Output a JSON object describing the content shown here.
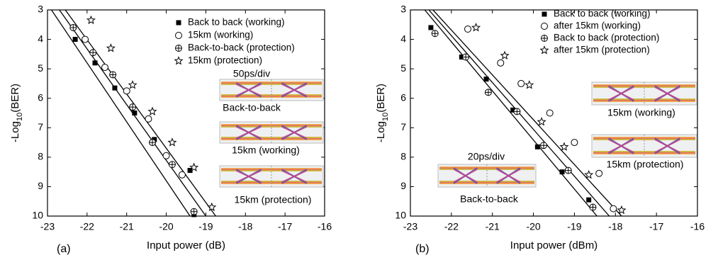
{
  "chart_data": [
    {
      "type": "scatter",
      "panel_label": "(a)",
      "xlabel": "Input power (dB)",
      "ylabel": [
        "-Log",
        "10",
        "(BER)"
      ],
      "xlim": [
        -23,
        -16
      ],
      "xticks": [
        -23,
        -22,
        -21,
        -20,
        -19,
        -18,
        -17,
        -16
      ],
      "ylim": [
        3,
        10
      ],
      "yticks": [
        3,
        4,
        5,
        6,
        7,
        8,
        9,
        10
      ],
      "y_inverted": true,
      "legend": "upper right",
      "series": [
        {
          "name": "Back to back (working)",
          "marker": "square",
          "color": "#000000",
          "x": [
            -22.3,
            -21.8,
            -21.3,
            -20.8,
            -20.3,
            -19.4,
            -19.3
          ],
          "values": [
            4.0,
            4.8,
            5.65,
            6.5,
            7.4,
            8.45,
            9.95
          ]
        },
        {
          "name": "15km (working)",
          "marker": "circle",
          "color": "#000000",
          "x": [
            -22.05,
            -21.55,
            -21.0,
            -20.45,
            -20.0,
            -19.6
          ],
          "values": [
            4.0,
            4.95,
            5.75,
            6.7,
            7.95,
            8.6
          ]
        },
        {
          "name": "Back-to-back (protection)",
          "marker": "circle-plus",
          "color": "#000000",
          "x": [
            -22.35,
            -21.85,
            -21.35,
            -20.85,
            -20.35,
            -19.85,
            -19.3
          ],
          "values": [
            3.6,
            4.45,
            5.2,
            6.3,
            7.5,
            8.25,
            9.85
          ]
        },
        {
          "name": "15km (protection)",
          "marker": "star",
          "color": "#000000",
          "x": [
            -21.9,
            -21.4,
            -20.85,
            -20.35,
            -19.85,
            -19.3,
            -18.85
          ],
          "values": [
            3.35,
            4.3,
            5.55,
            6.45,
            7.5,
            8.35,
            9.7
          ]
        }
      ],
      "fit_lines": [
        {
          "x": [
            -22.9,
            -19.4
          ],
          "values": [
            3,
            10
          ]
        },
        {
          "x": [
            -22.7,
            -19.0
          ],
          "values": [
            3,
            10
          ]
        },
        {
          "x": [
            -22.55,
            -18.75
          ],
          "values": [
            3,
            10
          ]
        }
      ],
      "scale_label": "50ps/div",
      "insets": [
        "Back-to-back",
        "15km (working)",
        "15km (protection)"
      ]
    },
    {
      "type": "scatter",
      "panel_label": "(b)",
      "xlabel": "Input power (dBm)",
      "ylabel": [
        "-Log",
        "10",
        "(BER)"
      ],
      "xlim": [
        -23,
        -16
      ],
      "xticks": [
        -23,
        -22,
        -21,
        -20,
        -19,
        -18,
        -17,
        -16
      ],
      "ylim": [
        3,
        10
      ],
      "yticks": [
        3,
        4,
        5,
        6,
        7,
        8,
        9,
        10
      ],
      "y_inverted": true,
      "legend": "upper right",
      "series": [
        {
          "name": "Back to back (working)",
          "marker": "square",
          "color": "#000000",
          "x": [
            -22.5,
            -21.75,
            -21.15,
            -20.5,
            -19.9,
            -19.3,
            -18.65
          ],
          "values": [
            3.6,
            4.6,
            5.35,
            6.4,
            7.65,
            8.5,
            9.45
          ]
        },
        {
          "name": "after 15km (working)",
          "marker": "circle",
          "color": "#000000",
          "x": [
            -21.6,
            -20.8,
            -20.3,
            -19.6,
            -19.0,
            -18.4,
            -18.05
          ],
          "values": [
            3.65,
            4.8,
            5.5,
            6.5,
            7.5,
            8.55,
            9.75
          ]
        },
        {
          "name": "Back to back (protection)",
          "marker": "circle-plus",
          "color": "#000000",
          "x": [
            -22.4,
            -21.65,
            -21.1,
            -20.4,
            -19.75,
            -19.15,
            -18.55
          ],
          "values": [
            3.8,
            4.6,
            5.8,
            6.45,
            7.6,
            8.45,
            9.7
          ]
        },
        {
          "name": "after 15km (protection)",
          "marker": "star",
          "color": "#000000",
          "x": [
            -21.4,
            -20.7,
            -20.1,
            -19.8,
            -19.25,
            -18.65,
            -17.85
          ],
          "values": [
            3.6,
            4.55,
            5.55,
            6.8,
            7.65,
            8.6,
            9.8
          ]
        }
      ],
      "fit_lines": [
        {
          "x": [
            -22.65,
            -18.45
          ],
          "values": [
            3,
            10
          ]
        },
        {
          "x": [
            -22.55,
            -18.15
          ],
          "values": [
            3,
            10
          ]
        },
        {
          "x": [
            -22.45,
            -17.85
          ],
          "values": [
            3,
            10
          ]
        }
      ],
      "scale_label": "20ps/div",
      "insets": [
        "15km (working)",
        "15km (protection)",
        "Back-to-back"
      ]
    }
  ]
}
